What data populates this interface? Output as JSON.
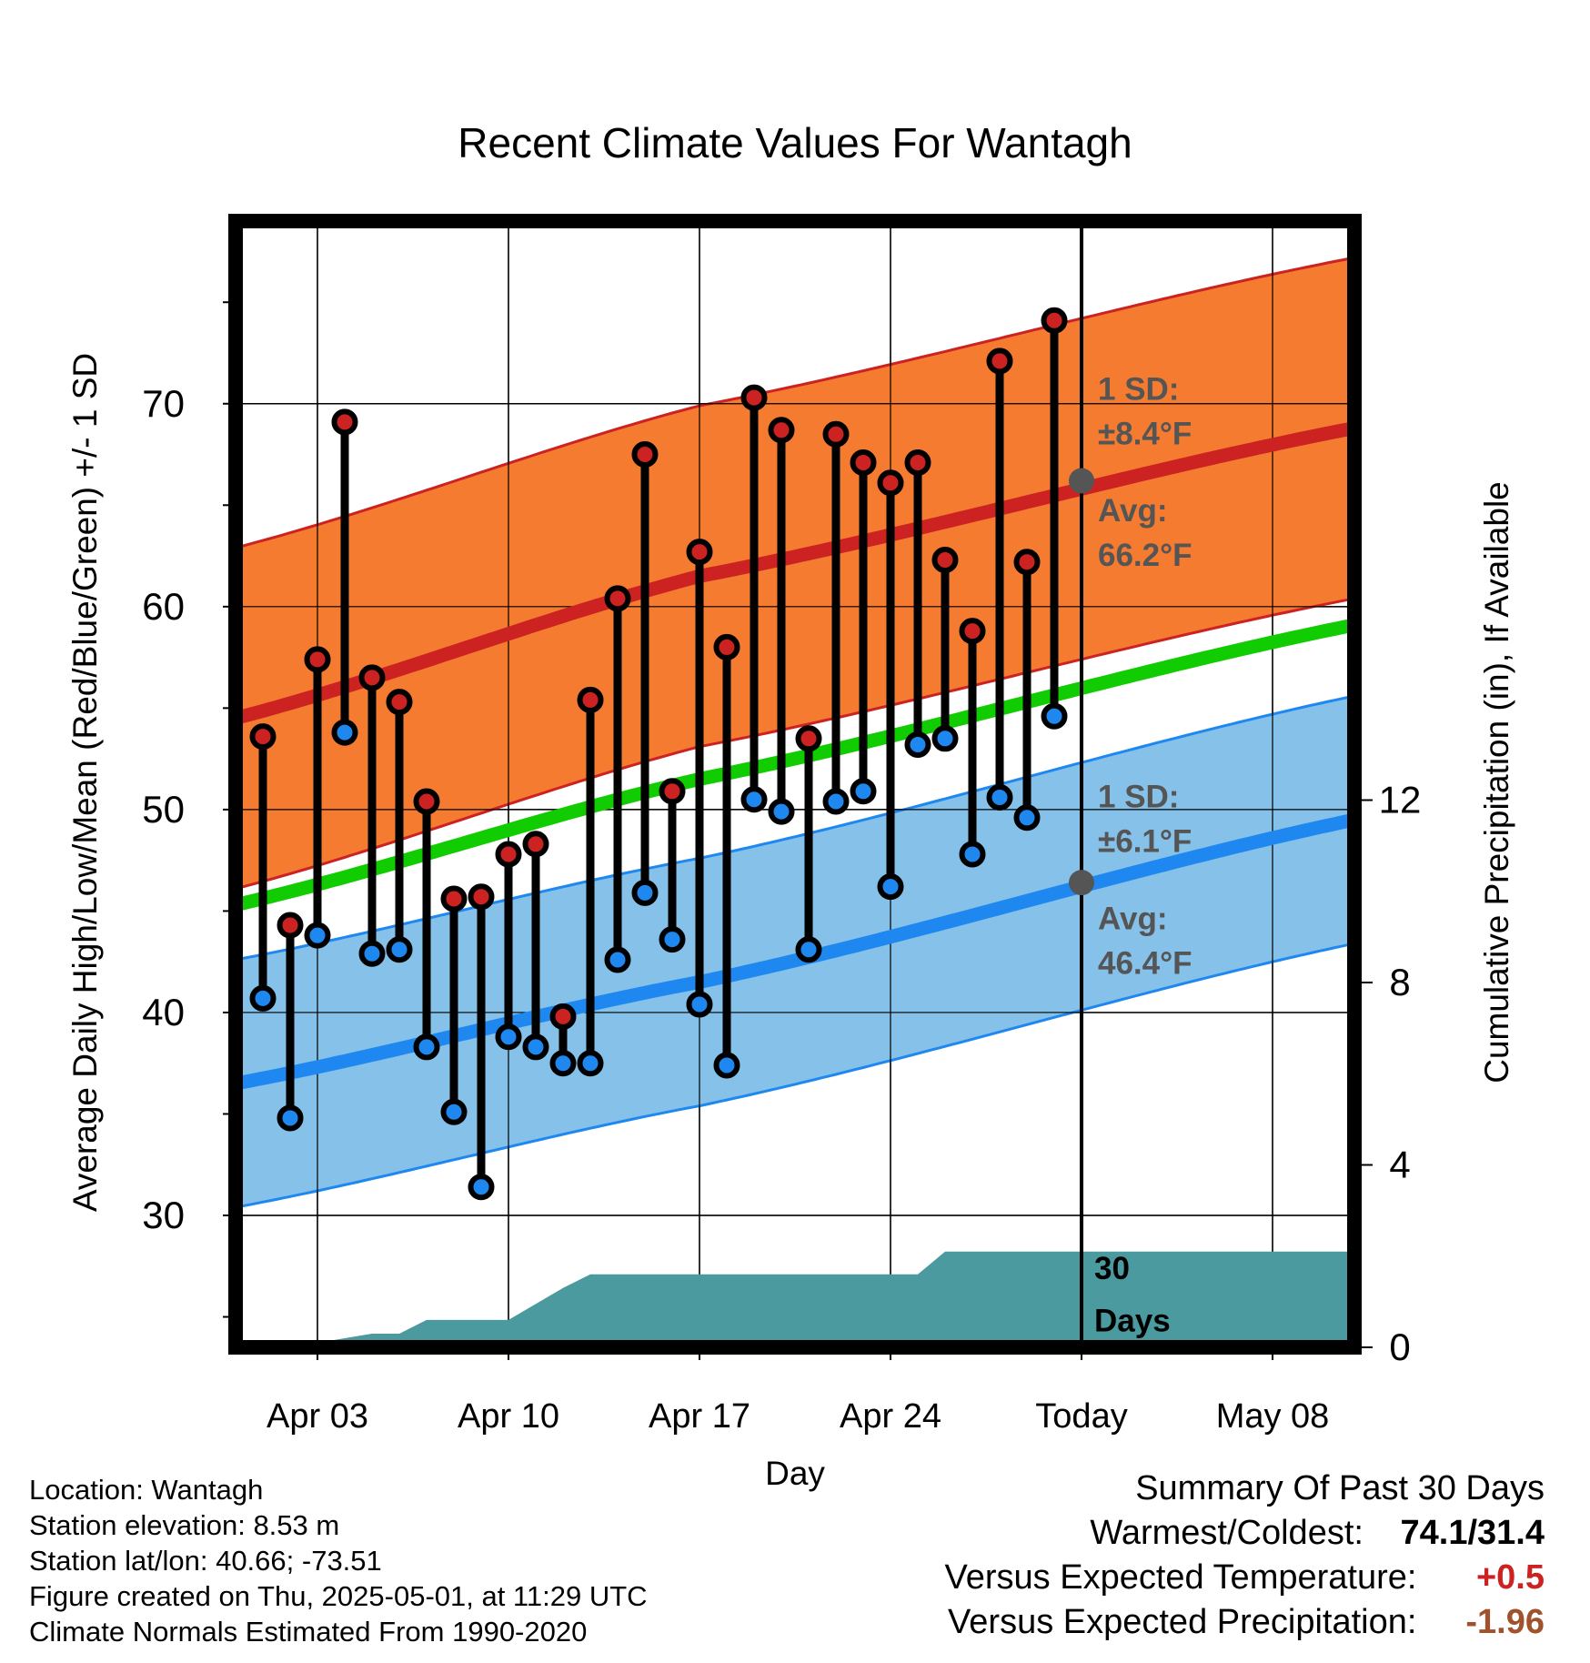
{
  "chart_data": {
    "type": "line",
    "title": "Recent Climate Values For Wantagh",
    "xlabel": "Day",
    "ylabel": "Average Daily High/Low/Mean (Red/Blue/Green) +/- 1 SD",
    "y2label": "Cumulative Precipitation (in), If Available",
    "xlim": [
      "2025-03-31",
      "2025-05-11"
    ],
    "ylim": [
      23.5,
      79
    ],
    "y2lim": [
      0,
      24.7
    ],
    "grid": true,
    "x_ticks": [
      {
        "date": "2025-04-03",
        "label": "Apr 03"
      },
      {
        "date": "2025-04-10",
        "label": "Apr 10"
      },
      {
        "date": "2025-04-17",
        "label": "Apr 17"
      },
      {
        "date": "2025-04-24",
        "label": "Apr 24"
      },
      {
        "date": "2025-05-01",
        "label": "Today"
      },
      {
        "date": "2025-05-08",
        "label": "May 08"
      }
    ],
    "y_ticks": [
      30,
      40,
      50,
      60,
      70
    ],
    "y2_ticks": [
      0,
      4,
      8,
      12
    ],
    "today": "2025-05-01",
    "normals": {
      "dates": [
        "2025-03-31",
        "2025-04-17",
        "2025-05-11"
      ],
      "high_mean": [
        54.5,
        61.5,
        68.8
      ],
      "high_sd": 8.4,
      "low_mean": [
        36.5,
        41.5,
        49.5
      ],
      "low_sd": 6.1,
      "mean": [
        45.3,
        51.5,
        59.1
      ]
    },
    "observations": {
      "dates": [
        "2025-04-01",
        "2025-04-02",
        "2025-04-03",
        "2025-04-04",
        "2025-04-05",
        "2025-04-06",
        "2025-04-07",
        "2025-04-08",
        "2025-04-09",
        "2025-04-10",
        "2025-04-11",
        "2025-04-12",
        "2025-04-13",
        "2025-04-14",
        "2025-04-15",
        "2025-04-16",
        "2025-04-17",
        "2025-04-18",
        "2025-04-19",
        "2025-04-20",
        "2025-04-21",
        "2025-04-22",
        "2025-04-23",
        "2025-04-24",
        "2025-04-25",
        "2025-04-26",
        "2025-04-27",
        "2025-04-28",
        "2025-04-29",
        "2025-04-30"
      ],
      "high": [
        53.6,
        44.3,
        57.4,
        69.1,
        56.5,
        55.3,
        50.4,
        45.6,
        45.7,
        47.8,
        48.3,
        39.8,
        55.4,
        60.4,
        67.5,
        50.9,
        62.7,
        58.0,
        70.3,
        68.7,
        53.5,
        68.5,
        67.1,
        66.1,
        67.1,
        62.3,
        58.8,
        72.1,
        62.2,
        74.1
      ],
      "low": [
        40.7,
        34.8,
        43.8,
        53.8,
        42.9,
        43.1,
        38.3,
        35.1,
        31.4,
        38.8,
        38.3,
        37.5,
        37.5,
        42.6,
        45.9,
        43.6,
        40.4,
        37.4,
        50.5,
        49.9,
        43.1,
        50.4,
        50.9,
        46.2,
        53.2,
        53.5,
        47.8,
        50.6,
        49.6,
        54.6
      ]
    },
    "precip_cumulative": {
      "dates": [
        "2025-03-31",
        "2025-04-02",
        "2025-04-03",
        "2025-04-05",
        "2025-04-06",
        "2025-04-07",
        "2025-04-08",
        "2025-04-09",
        "2025-04-10",
        "2025-04-12",
        "2025-04-13",
        "2025-04-14",
        "2025-04-25",
        "2025-04-26",
        "2025-05-11"
      ],
      "values": [
        0,
        0,
        0.1,
        0.3,
        0.3,
        0.6,
        0.6,
        0.6,
        0.6,
        1.3,
        1.6,
        1.6,
        1.6,
        2.1,
        2.1
      ]
    },
    "annotations": {
      "high_sd": {
        "label": "1 SD:",
        "value": "±8.4°F"
      },
      "high_avg": {
        "label": "Avg:",
        "value": "66.2°F",
        "y": 66.2
      },
      "low_sd": {
        "label": "1 SD:",
        "value": "±6.1°F"
      },
      "low_avg": {
        "label": "Avg:",
        "value": "46.4°F",
        "y": 46.4
      },
      "precip_days": [
        "30",
        "Days"
      ]
    },
    "colors": {
      "high_band": "#f47b30",
      "high_line": "#cc2222",
      "low_band": "#85c1e9",
      "low_line": "#1e88f0",
      "mean_line": "#11cc00",
      "precip": "#4a9aa0",
      "high_marker": "#cc2222",
      "low_marker": "#1e88f0",
      "annotation": "#555555"
    }
  },
  "info": {
    "location": "Location: Wantagh",
    "elevation": "Station elevation: 8.53 m",
    "latlon": "Station lat/lon: 40.66; -73.51",
    "created": "Figure created on Thu, 2025-05-01, at 11:29 UTC",
    "normals_source": "Climate Normals Estimated From 1990-2020"
  },
  "summary": {
    "heading": "Summary Of Past 30 Days",
    "warmest_coldest_label": "Warmest/Coldest:",
    "warmest_coldest_value": "74.1/31.4",
    "temp_label": "Versus Expected Temperature:",
    "temp_value": "+0.5",
    "precip_label": "Versus Expected Precipitation:",
    "precip_value": "-1.96"
  }
}
